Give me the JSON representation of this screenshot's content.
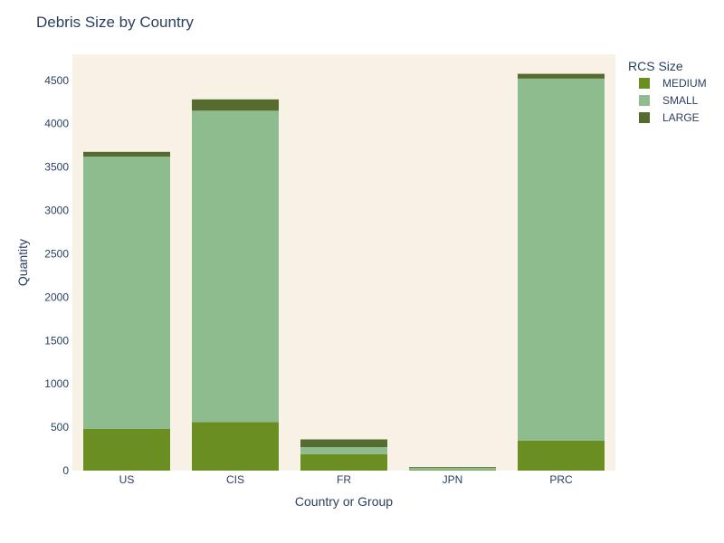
{
  "chart_data": {
    "type": "bar",
    "stacked": true,
    "title": "Debris Size by Country",
    "xlabel": "Country or Group",
    "ylabel": "Quantity",
    "categories": [
      "US",
      "CIS",
      "FR",
      "JPN",
      "PRC"
    ],
    "ylim": [
      0,
      4800
    ],
    "yticks": [
      0,
      500,
      1000,
      1500,
      2000,
      2500,
      3000,
      3500,
      4000,
      4500
    ],
    "grid": false,
    "plot_background": "#f8f1e6",
    "legend": {
      "title": "RCS Size",
      "position": "top-right"
    },
    "series": [
      {
        "name": "MEDIUM",
        "color": "#6b8e23",
        "values": [
          480,
          560,
          190,
          5,
          345
        ]
      },
      {
        "name": "SMALL",
        "color": "#8fbc8f",
        "values": [
          3140,
          3590,
          80,
          25,
          4175
        ]
      },
      {
        "name": "LARGE",
        "color": "#556b2f",
        "values": [
          55,
          130,
          90,
          10,
          55
        ]
      }
    ]
  }
}
